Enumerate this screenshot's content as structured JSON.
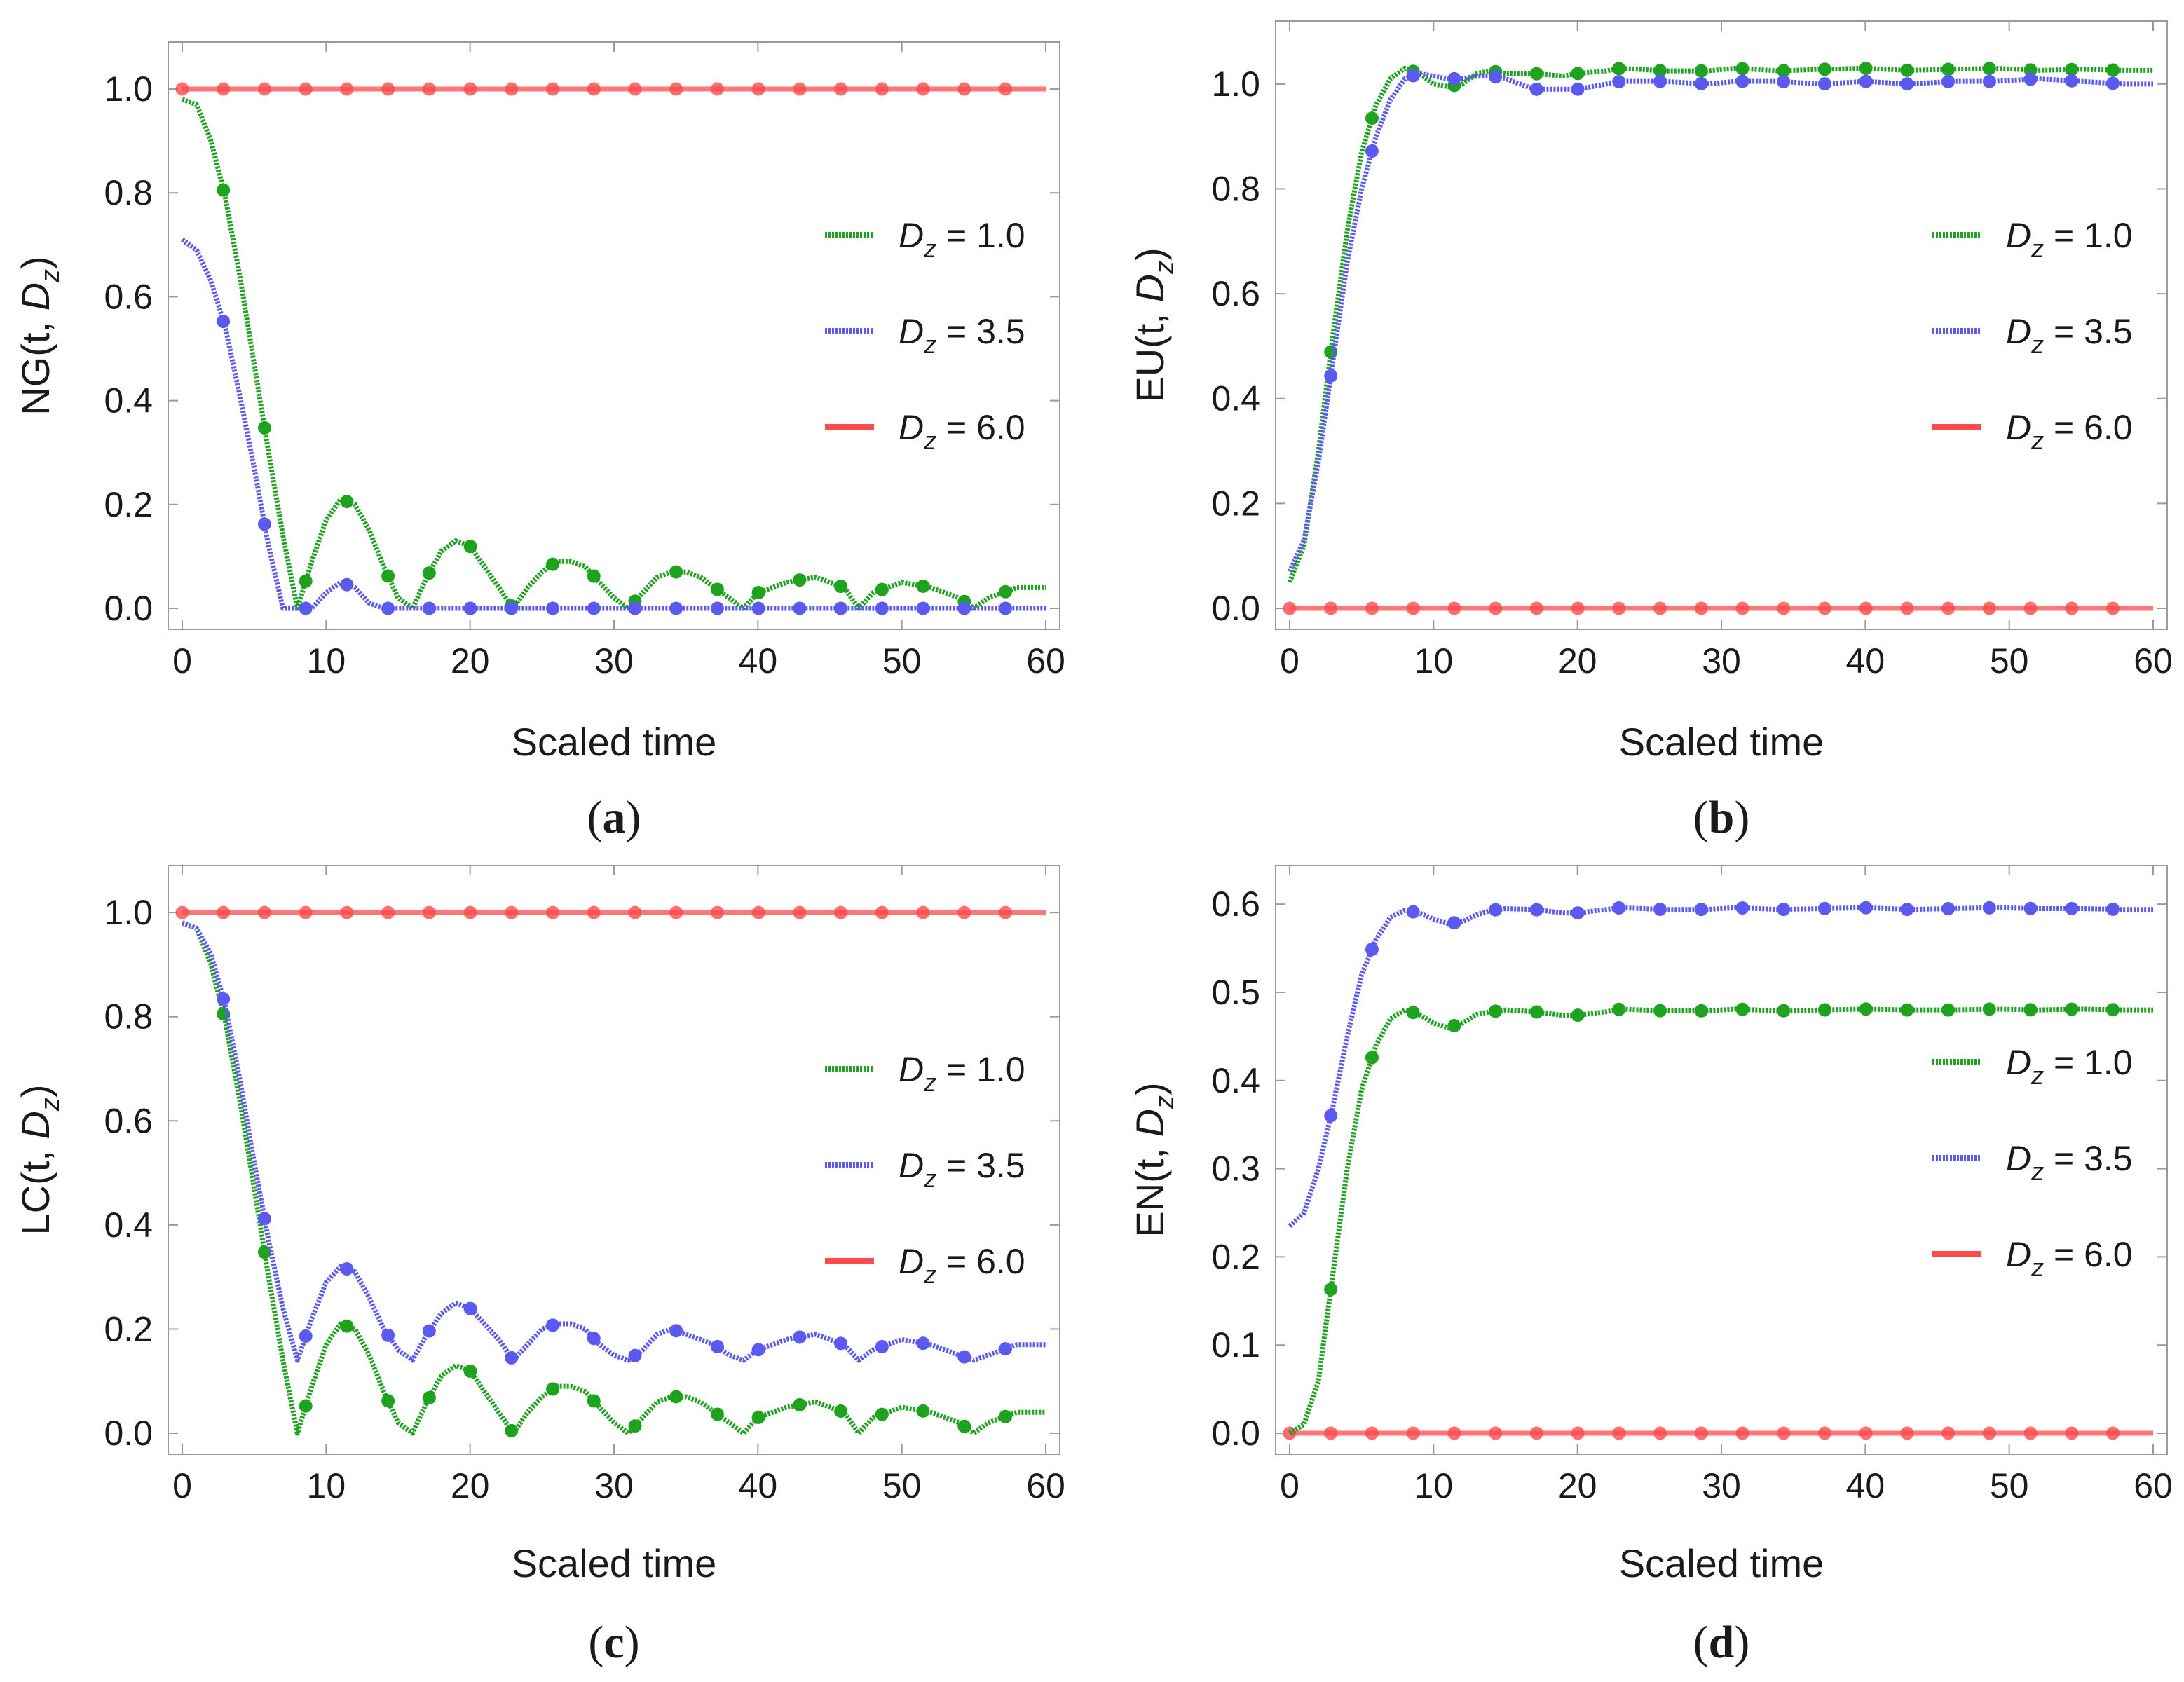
{
  "chart_data": [
    {
      "panel": "(a)",
      "type": "line",
      "xlabel": "Scaled time",
      "ylabel": "NG(t, D_z)",
      "ylabel_prefix": "NG(t, ",
      "xlim": [
        0,
        60
      ],
      "ylim": [
        0,
        1.05
      ],
      "xticks": [
        0,
        10,
        20,
        30,
        40,
        50,
        60
      ],
      "yticks": [
        0.0,
        0.2,
        0.4,
        0.6,
        0.8,
        1.0
      ],
      "legend_position": "right",
      "series": [
        {
          "name": "D_z = 1.0",
          "label_value": "= 1.0",
          "color": "#1ea31e",
          "style": "dotted",
          "x": [
            0,
            1,
            2,
            3,
            4,
            5,
            6,
            7,
            8,
            9,
            10,
            11,
            12,
            13,
            14,
            15,
            16,
            17,
            18,
            19,
            20,
            21,
            22,
            23,
            24,
            25,
            26,
            27,
            28,
            29,
            30,
            31,
            32,
            33,
            34,
            35,
            36,
            37,
            38,
            39,
            40,
            42,
            44,
            46,
            47,
            48,
            50,
            52,
            54,
            55,
            56,
            58,
            60
          ],
          "y": [
            0.98,
            0.97,
            0.9,
            0.79,
            0.64,
            0.47,
            0.3,
            0.14,
            0.0,
            0.09,
            0.17,
            0.21,
            0.2,
            0.15,
            0.08,
            0.02,
            0.0,
            0.06,
            0.11,
            0.13,
            0.12,
            0.08,
            0.04,
            0.0,
            0.04,
            0.07,
            0.09,
            0.09,
            0.08,
            0.05,
            0.02,
            0.0,
            0.03,
            0.06,
            0.07,
            0.07,
            0.06,
            0.04,
            0.02,
            0.0,
            0.03,
            0.05,
            0.06,
            0.04,
            0.0,
            0.03,
            0.05,
            0.04,
            0.02,
            0.0,
            0.02,
            0.04,
            0.04
          ]
        },
        {
          "name": "D_z = 3.5",
          "label_value": "= 3.5",
          "color": "#5a5af0",
          "style": "dotted",
          "x": [
            0,
            1,
            2,
            3,
            4,
            5,
            6,
            7,
            8,
            9,
            10,
            11,
            12,
            13,
            14,
            60
          ],
          "y": [
            0.71,
            0.69,
            0.63,
            0.54,
            0.41,
            0.27,
            0.12,
            0.0,
            0.0,
            0.0,
            0.03,
            0.05,
            0.04,
            0.01,
            0.0,
            0.0
          ]
        },
        {
          "name": "D_z = 6.0",
          "label_value": "= 6.0",
          "color": "#ff4a4a",
          "style": "solid",
          "x": [
            0,
            60
          ],
          "y": [
            1.0,
            1.0
          ]
        }
      ]
    },
    {
      "panel": "(b)",
      "type": "line",
      "xlabel": "Scaled time",
      "ylabel": "EU(t, D_z)",
      "ylabel_prefix": "EU(t, ",
      "xlim": [
        0,
        60
      ],
      "ylim": [
        0,
        1.08
      ],
      "xticks": [
        0,
        10,
        20,
        30,
        40,
        50,
        60
      ],
      "yticks": [
        0.0,
        0.2,
        0.4,
        0.6,
        0.8,
        1.0
      ],
      "legend_position": "right",
      "series": [
        {
          "name": "D_z = 1.0",
          "label_value": "= 1.0",
          "color": "#1ea31e",
          "style": "dotted",
          "x": [
            0,
            1,
            2,
            3,
            4,
            5,
            6,
            7,
            8,
            9,
            10,
            11,
            12,
            13,
            14,
            15,
            17,
            19,
            20,
            22,
            23,
            26,
            29,
            31,
            34,
            37,
            40,
            43,
            46,
            49,
            52,
            55,
            58,
            60
          ],
          "y": [
            0.05,
            0.12,
            0.3,
            0.52,
            0.72,
            0.87,
            0.96,
            1.01,
            1.03,
            1.02,
            1.0,
            0.995,
            1.0,
            1.02,
            1.025,
            1.02,
            1.02,
            1.015,
            1.02,
            1.025,
            1.03,
            1.025,
            1.025,
            1.03,
            1.025,
            1.028,
            1.03,
            1.026,
            1.028,
            1.03,
            1.026,
            1.028,
            1.026,
            1.026
          ]
        },
        {
          "name": "D_z = 3.5",
          "label_value": "= 3.5",
          "color": "#5a5af0",
          "style": "dotted",
          "x": [
            0,
            1,
            2,
            3,
            4,
            5,
            6,
            7,
            8,
            9,
            10,
            11,
            12,
            13,
            14,
            15,
            17,
            19,
            20,
            22,
            23,
            26,
            29,
            31,
            34,
            37,
            40,
            43,
            46,
            49,
            52,
            55,
            58,
            60
          ],
          "y": [
            0.07,
            0.13,
            0.28,
            0.47,
            0.66,
            0.8,
            0.9,
            0.97,
            1.01,
            1.02,
            1.015,
            1.01,
            1.01,
            1.015,
            1.015,
            1.01,
            0.99,
            0.99,
            0.99,
            1.0,
            1.005,
            1.005,
            1.0,
            1.005,
            1.005,
            1.0,
            1.005,
            1.0,
            1.005,
            1.005,
            1.01,
            1.005,
            1.0,
            1.0
          ]
        },
        {
          "name": "D_z = 6.0",
          "label_value": "= 6.0",
          "color": "#ff4a4a",
          "style": "solid",
          "x": [
            0,
            60
          ],
          "y": [
            0.0,
            0.0
          ]
        }
      ]
    },
    {
      "panel": "(c)",
      "type": "line",
      "xlabel": "Scaled time",
      "ylabel": "LC(t, D_z)",
      "ylabel_prefix": "LC(t, ",
      "xlim": [
        0,
        60
      ],
      "ylim": [
        0,
        1.05
      ],
      "xticks": [
        0,
        10,
        20,
        30,
        40,
        50,
        60
      ],
      "yticks": [
        0.0,
        0.2,
        0.4,
        0.6,
        0.8,
        1.0
      ],
      "legend_position": "right",
      "series": [
        {
          "name": "D_z = 1.0",
          "label_value": "= 1.0",
          "color": "#1ea31e",
          "style": "dotted",
          "x": [
            0,
            1,
            2,
            3,
            4,
            5,
            6,
            7,
            8,
            9,
            10,
            11,
            12,
            13,
            14,
            15,
            16,
            17,
            18,
            19,
            20,
            21,
            22,
            23,
            24,
            25,
            26,
            27,
            28,
            29,
            30,
            31,
            32,
            33,
            34,
            35,
            36,
            37,
            38,
            39,
            40,
            42,
            44,
            46,
            47,
            48,
            50,
            52,
            54,
            55,
            56,
            58,
            60
          ],
          "y": [
            0.98,
            0.97,
            0.9,
            0.79,
            0.64,
            0.47,
            0.3,
            0.14,
            0.0,
            0.09,
            0.17,
            0.21,
            0.2,
            0.15,
            0.08,
            0.02,
            0.0,
            0.06,
            0.11,
            0.13,
            0.12,
            0.08,
            0.04,
            0.0,
            0.04,
            0.07,
            0.09,
            0.09,
            0.08,
            0.05,
            0.02,
            0.0,
            0.03,
            0.06,
            0.07,
            0.07,
            0.06,
            0.04,
            0.02,
            0.0,
            0.03,
            0.05,
            0.06,
            0.04,
            0.0,
            0.03,
            0.05,
            0.04,
            0.02,
            0.0,
            0.02,
            0.04,
            0.04
          ]
        },
        {
          "name": "D_z = 3.5",
          "label_value": "= 3.5",
          "color": "#5a5af0",
          "style": "dotted",
          "x": [
            0,
            1,
            2,
            3,
            4,
            5,
            6,
            7,
            8,
            9,
            10,
            11,
            12,
            13,
            14,
            15,
            16,
            17,
            18,
            19,
            20,
            21,
            22,
            23,
            24,
            25,
            26,
            27,
            28,
            29,
            30,
            31,
            32,
            33,
            34,
            35,
            36,
            37,
            38,
            39,
            40,
            42,
            44,
            46,
            47,
            48,
            50,
            52,
            54,
            55,
            56,
            58,
            60
          ],
          "y": [
            0.98,
            0.97,
            0.92,
            0.82,
            0.68,
            0.52,
            0.37,
            0.24,
            0.14,
            0.22,
            0.29,
            0.32,
            0.31,
            0.26,
            0.2,
            0.16,
            0.14,
            0.19,
            0.23,
            0.25,
            0.24,
            0.21,
            0.18,
            0.14,
            0.17,
            0.2,
            0.21,
            0.21,
            0.2,
            0.17,
            0.15,
            0.14,
            0.16,
            0.19,
            0.2,
            0.19,
            0.18,
            0.17,
            0.15,
            0.14,
            0.16,
            0.18,
            0.19,
            0.17,
            0.14,
            0.16,
            0.18,
            0.17,
            0.15,
            0.14,
            0.15,
            0.17,
            0.17
          ]
        },
        {
          "name": "D_z = 6.0",
          "label_value": "= 6.0",
          "color": "#ff4a4a",
          "style": "solid",
          "x": [
            0,
            60
          ],
          "y": [
            1.0,
            1.0
          ]
        }
      ]
    },
    {
      "panel": "(d)",
      "type": "line",
      "xlabel": "Scaled time",
      "ylabel": "EN(t, D_z)",
      "ylabel_prefix": "EN(t, ",
      "xlim": [
        0,
        60
      ],
      "ylim": [
        0,
        0.62
      ],
      "xticks": [
        0,
        10,
        20,
        30,
        40,
        50,
        60
      ],
      "yticks": [
        0.0,
        0.1,
        0.2,
        0.3,
        0.4,
        0.5,
        0.6
      ],
      "legend_position": "right",
      "series": [
        {
          "name": "D_z = 1.0",
          "label_value": "= 1.0",
          "color": "#1ea31e",
          "style": "dotted",
          "x": [
            0,
            1,
            2,
            3,
            4,
            5,
            6,
            7,
            8,
            9,
            10,
            11,
            12,
            13,
            14,
            15,
            17,
            19,
            20,
            22,
            23,
            26,
            29,
            31,
            34,
            37,
            40,
            43,
            46,
            49,
            52,
            55,
            58,
            60
          ],
          "y": [
            0.0,
            0.01,
            0.06,
            0.18,
            0.3,
            0.39,
            0.44,
            0.47,
            0.48,
            0.475,
            0.465,
            0.46,
            0.465,
            0.475,
            0.478,
            0.48,
            0.478,
            0.474,
            0.474,
            0.478,
            0.481,
            0.479,
            0.479,
            0.481,
            0.479,
            0.48,
            0.481,
            0.48,
            0.48,
            0.481,
            0.48,
            0.481,
            0.48,
            0.48
          ]
        },
        {
          "name": "D_z = 3.5",
          "label_value": "= 3.5",
          "color": "#5a5af0",
          "style": "dotted",
          "x": [
            0,
            1,
            2,
            3,
            4,
            5,
            6,
            7,
            8,
            9,
            10,
            11,
            12,
            13,
            14,
            15,
            17,
            19,
            20,
            22,
            23,
            26,
            29,
            31,
            34,
            37,
            40,
            43,
            46,
            49,
            52,
            55,
            58,
            60
          ],
          "y": [
            0.235,
            0.25,
            0.3,
            0.37,
            0.45,
            0.52,
            0.56,
            0.585,
            0.593,
            0.59,
            0.583,
            0.578,
            0.58,
            0.588,
            0.593,
            0.595,
            0.594,
            0.59,
            0.59,
            0.594,
            0.596,
            0.594,
            0.594,
            0.596,
            0.594,
            0.595,
            0.596,
            0.594,
            0.595,
            0.596,
            0.595,
            0.595,
            0.594,
            0.594
          ]
        },
        {
          "name": "D_z = 6.0",
          "label_value": "= 6.0",
          "color": "#ff4a4a",
          "style": "solid",
          "x": [
            0,
            60
          ],
          "y": [
            0.0,
            0.0
          ]
        }
      ]
    }
  ]
}
